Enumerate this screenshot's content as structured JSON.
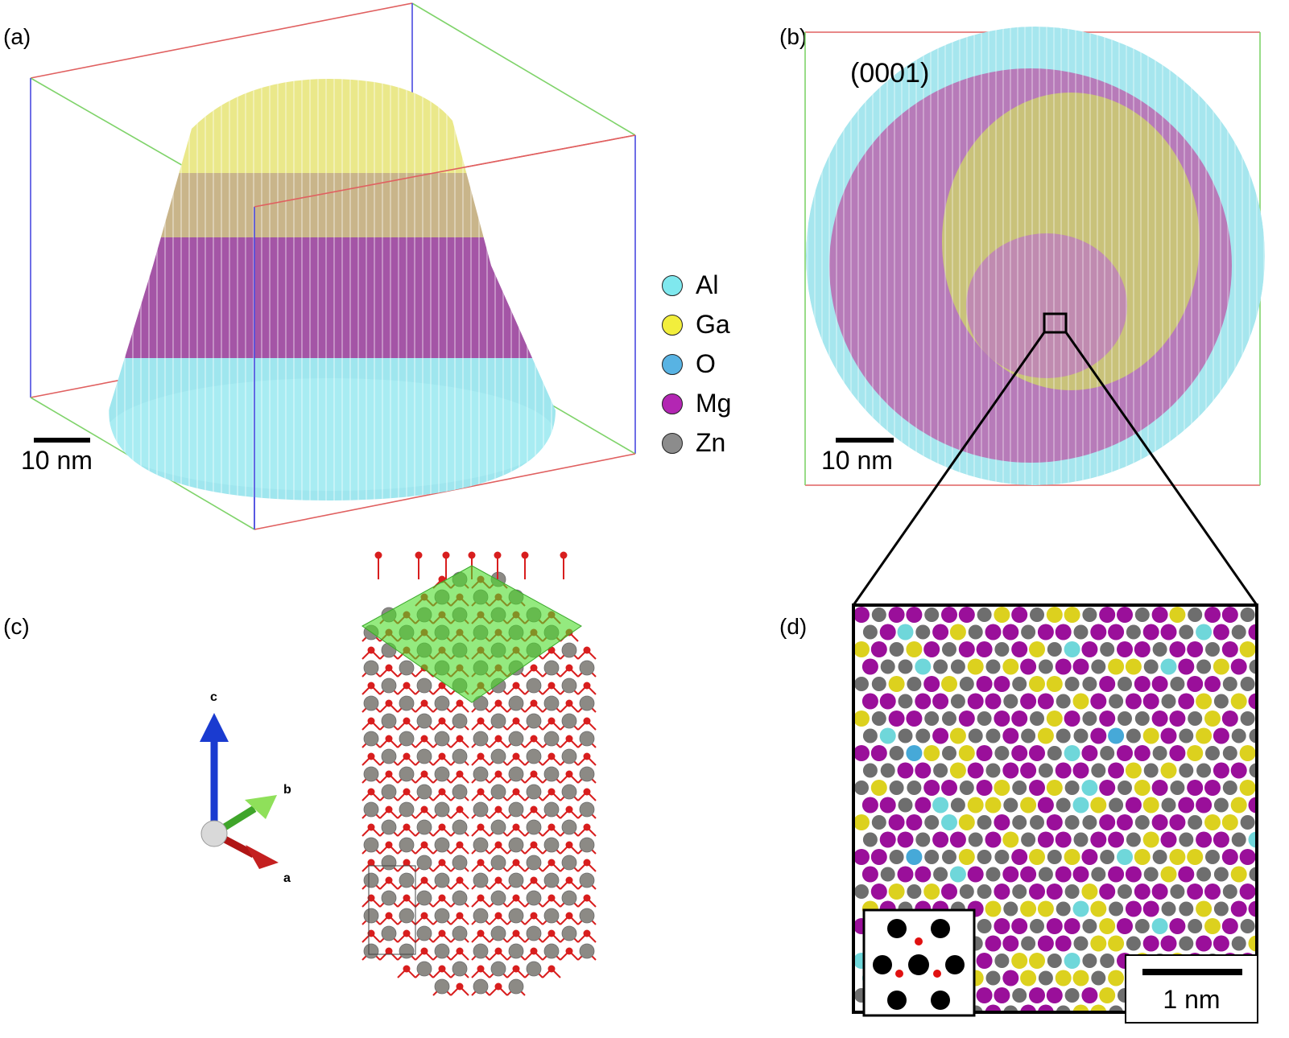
{
  "panels": {
    "a": {
      "label": "(a)",
      "scale": "10 nm"
    },
    "b": {
      "label": "(b)",
      "plane": "(0001)",
      "scale": "10 nm"
    },
    "c": {
      "label": "(c)",
      "axes": {
        "c": "c",
        "b": "b",
        "a": "a"
      }
    },
    "d": {
      "label": "(d)",
      "scale": "1 nm"
    }
  },
  "legend": [
    {
      "name": "Al",
      "color": "#7fe8ee"
    },
    {
      "name": "Ga",
      "color": "#f2ee3c"
    },
    {
      "name": "O",
      "color": "#58b3e3"
    },
    {
      "name": "Mg",
      "color": "#b326b3"
    },
    {
      "name": "Zn",
      "color": "#8c8c8c"
    }
  ],
  "colors": {
    "box_red": "#e06060",
    "box_green": "#7fd36a",
    "box_blue": "#4a4ae0",
    "atom_zn": "#8c8a85",
    "atom_o": "#d81e1e",
    "plane": "#4cdc2a",
    "d_mg": "#9a0f9a",
    "d_zn": "#6e6e6e",
    "d_ga": "#dcd11e",
    "d_al": "#6fd7da",
    "d_o": "#46a9d8"
  }
}
